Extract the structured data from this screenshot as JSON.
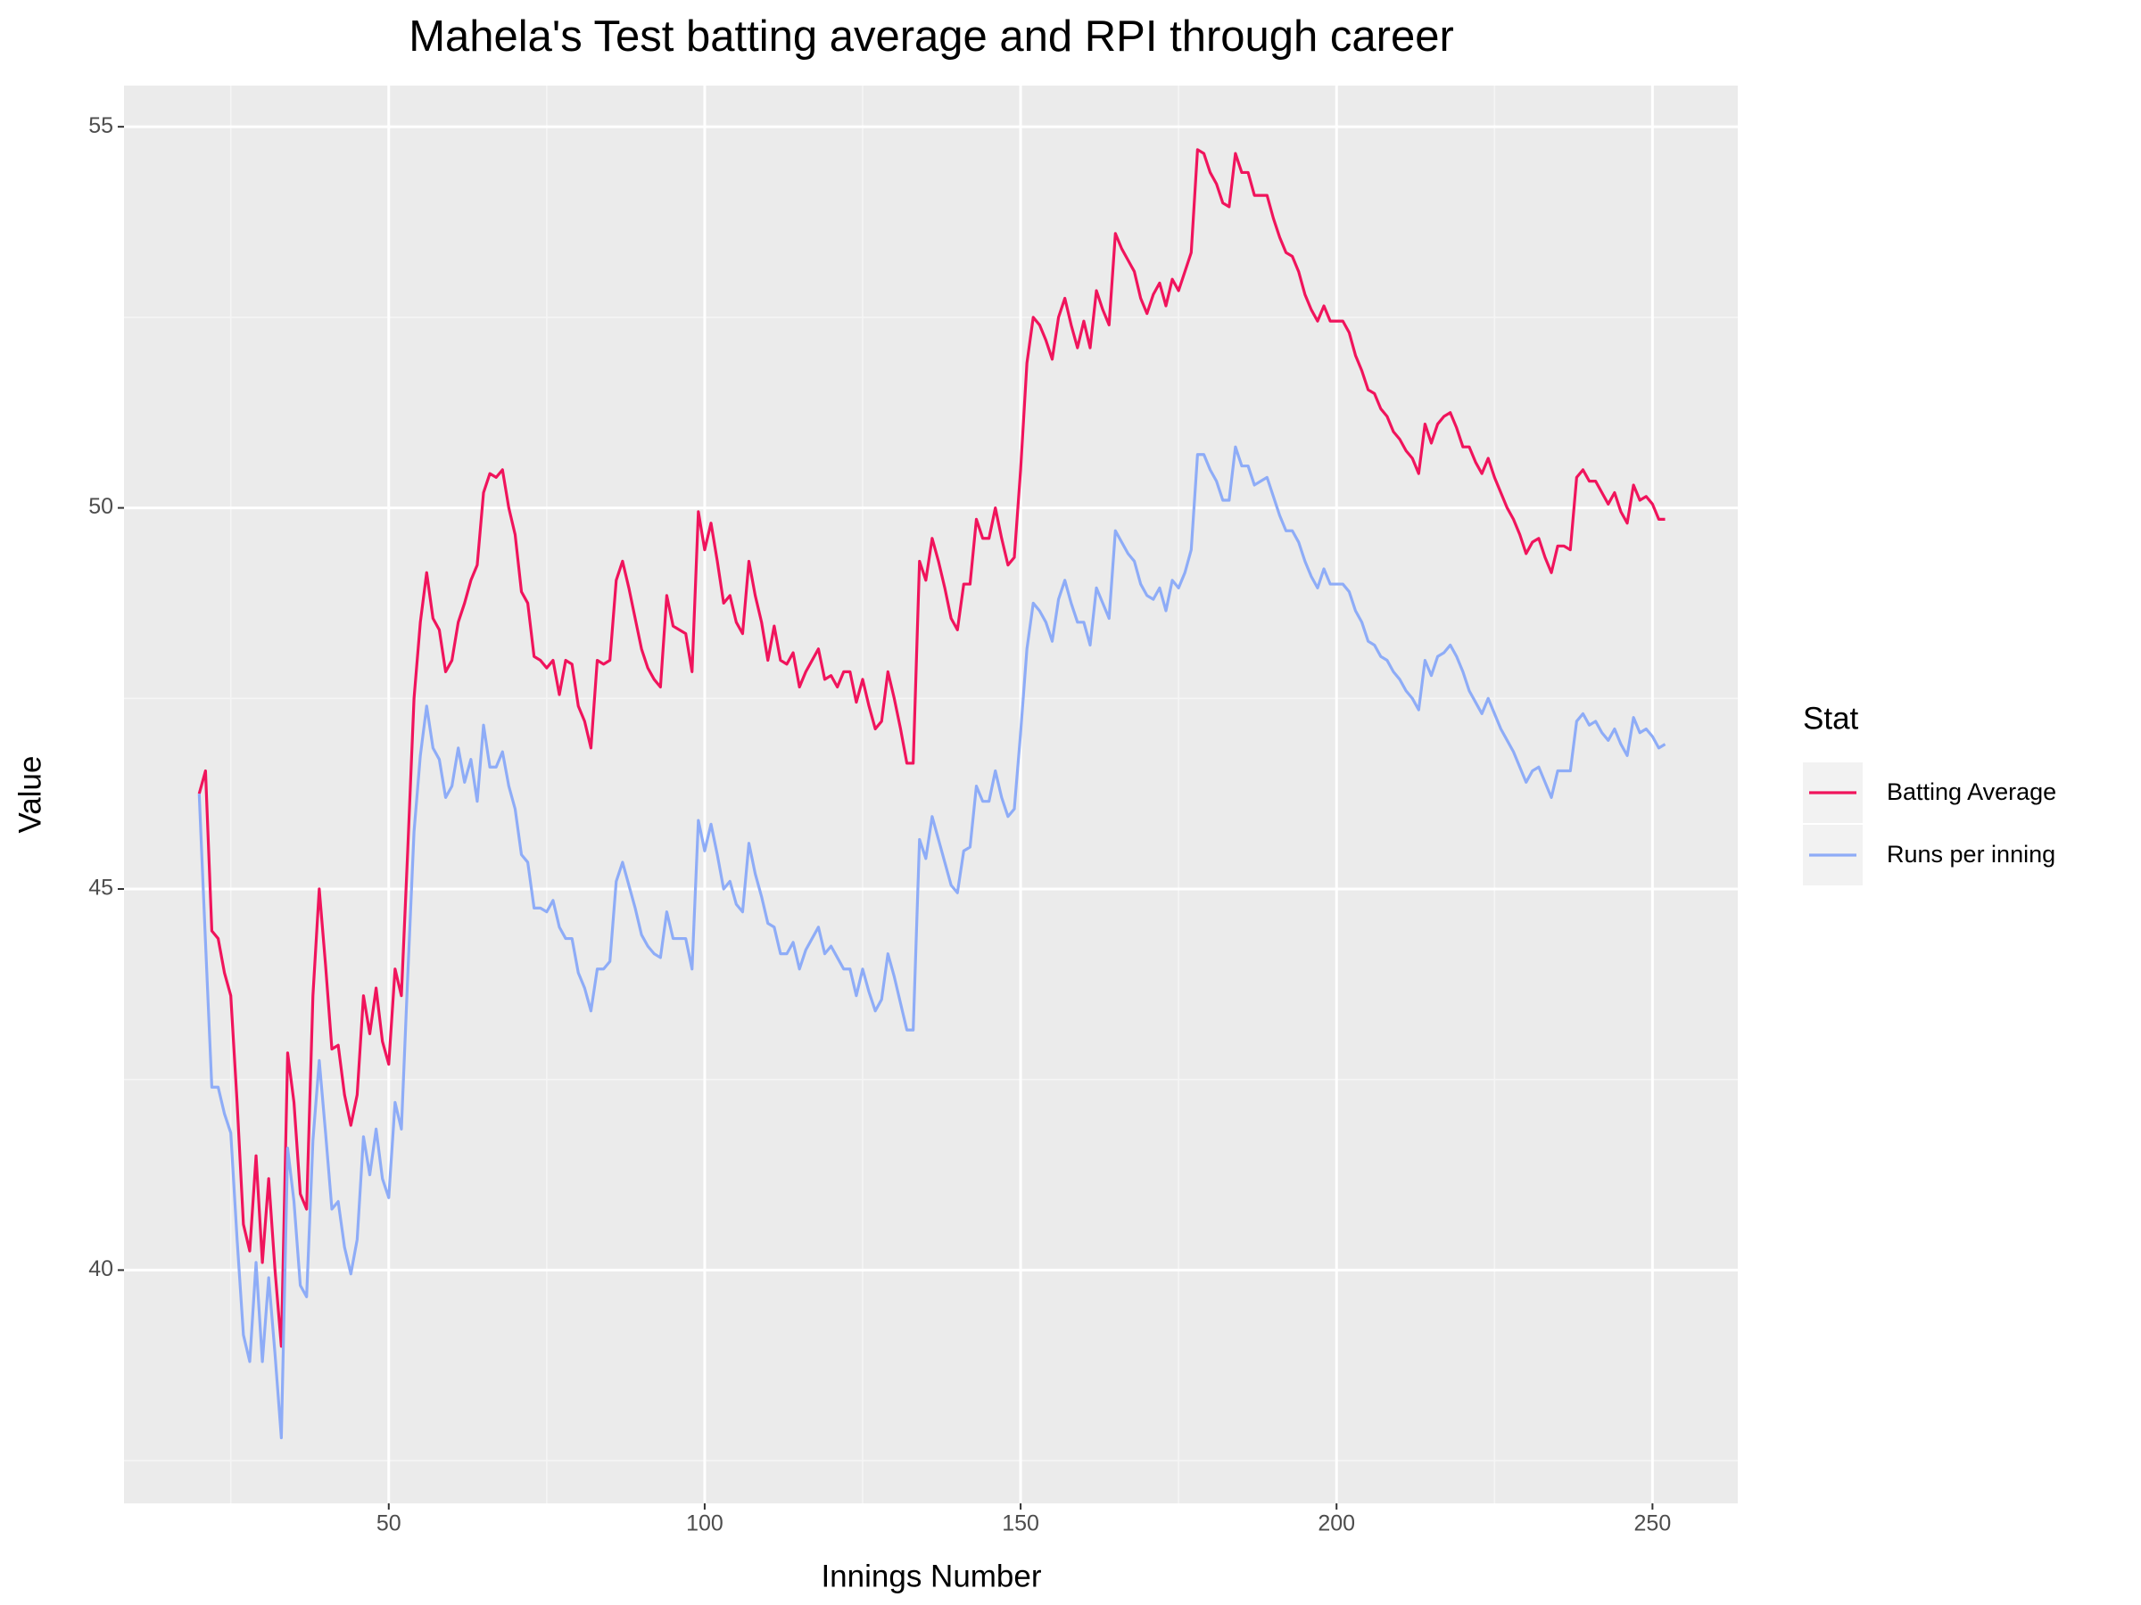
{
  "chart_data": {
    "type": "line",
    "title": "Mahela's Test batting average and RPI through career",
    "x_label": "Innings Number",
    "y_label": "Value",
    "legend_title": "Stat",
    "xlim": [
      8.1,
      263.5
    ],
    "ylim": [
      36.94,
      55.54
    ],
    "xticks": [
      50,
      100,
      150,
      200,
      250
    ],
    "yticks": [
      40,
      45,
      50,
      55
    ],
    "minor_xticks": [
      25,
      75,
      125,
      175,
      225
    ],
    "minor_yticks": [
      37.5,
      42.5,
      47.5,
      52.5
    ],
    "grid": true,
    "legend_position": "right",
    "x": [
      20,
      21,
      22,
      23,
      24,
      25,
      26,
      27,
      28,
      29,
      30,
      31,
      32,
      33,
      34,
      35,
      36,
      37,
      38,
      39,
      40,
      41,
      42,
      43,
      44,
      45,
      46,
      47,
      48,
      49,
      50,
      51,
      52,
      53,
      54,
      55,
      56,
      57,
      58,
      59,
      60,
      61,
      62,
      63,
      64,
      65,
      66,
      67,
      68,
      69,
      70,
      71,
      72,
      73,
      74,
      75,
      76,
      77,
      78,
      79,
      80,
      81,
      82,
      83,
      84,
      85,
      86,
      87,
      88,
      89,
      90,
      91,
      92,
      93,
      94,
      95,
      96,
      97,
      98,
      99,
      100,
      101,
      102,
      103,
      104,
      105,
      106,
      107,
      108,
      109,
      110,
      111,
      112,
      113,
      114,
      115,
      116,
      117,
      118,
      119,
      120,
      121,
      122,
      123,
      124,
      125,
      126,
      127,
      128,
      129,
      130,
      131,
      132,
      133,
      134,
      135,
      136,
      137,
      138,
      139,
      140,
      141,
      142,
      143,
      144,
      145,
      146,
      147,
      148,
      149,
      150,
      151,
      152,
      153,
      154,
      155,
      156,
      157,
      158,
      159,
      160,
      161,
      162,
      163,
      164,
      165,
      166,
      167,
      168,
      169,
      170,
      171,
      172,
      173,
      174,
      175,
      176,
      177,
      178,
      179,
      180,
      181,
      182,
      183,
      184,
      185,
      186,
      187,
      188,
      189,
      190,
      191,
      192,
      193,
      194,
      195,
      196,
      197,
      198,
      199,
      200,
      201,
      202,
      203,
      204,
      205,
      206,
      207,
      208,
      209,
      210,
      211,
      212,
      213,
      214,
      215,
      216,
      217,
      218,
      219,
      220,
      221,
      222,
      223,
      224,
      225,
      226,
      227,
      228,
      229,
      230,
      231,
      232,
      233,
      234,
      235,
      236,
      237,
      238,
      239,
      240,
      241,
      242,
      243,
      244,
      245,
      246,
      247,
      248,
      249,
      250,
      251,
      252
    ],
    "series": [
      {
        "name": "Batting Average",
        "color": "#f0145c",
        "values": [
          46.25,
          46.55,
          44.45,
          44.35,
          43.9,
          43.6,
          42.2,
          40.6,
          40.25,
          41.5,
          40.1,
          41.2,
          40.0,
          39.0,
          42.85,
          42.2,
          41.0,
          40.8,
          43.6,
          45.0,
          44.0,
          42.9,
          42.95,
          42.3,
          41.9,
          42.3,
          43.6,
          43.1,
          43.7,
          43.0,
          42.7,
          43.95,
          43.6,
          45.5,
          47.5,
          48.5,
          49.15,
          48.55,
          48.4,
          47.85,
          48.0,
          48.5,
          48.75,
          49.05,
          49.25,
          50.2,
          50.45,
          50.4,
          50.5,
          50.0,
          49.65,
          48.9,
          48.75,
          48.05,
          48.0,
          47.9,
          48.0,
          47.55,
          48.0,
          47.95,
          47.4,
          47.2,
          46.85,
          48.0,
          47.95,
          48.0,
          49.05,
          49.3,
          48.95,
          48.55,
          48.15,
          47.9,
          47.75,
          47.65,
          48.85,
          48.45,
          48.4,
          48.35,
          47.85,
          49.95,
          49.45,
          49.8,
          49.3,
          48.75,
          48.85,
          48.5,
          48.35,
          49.3,
          48.85,
          48.5,
          48.0,
          48.45,
          48.0,
          47.95,
          48.1,
          47.65,
          47.85,
          48.0,
          48.15,
          47.75,
          47.8,
          47.65,
          47.85,
          47.85,
          47.45,
          47.75,
          47.4,
          47.1,
          47.2,
          47.85,
          47.5,
          47.1,
          46.65,
          46.65,
          49.3,
          49.05,
          49.6,
          49.3,
          48.95,
          48.55,
          48.4,
          49.0,
          49.0,
          49.85,
          49.6,
          49.6,
          50.0,
          49.6,
          49.25,
          49.35,
          50.5,
          51.9,
          52.5,
          52.4,
          52.2,
          51.95,
          52.5,
          52.75,
          52.4,
          52.1,
          52.45,
          52.1,
          52.85,
          52.6,
          52.4,
          53.6,
          53.4,
          53.25,
          53.1,
          52.75,
          52.55,
          52.8,
          52.95,
          52.65,
          53.0,
          52.85,
          53.1,
          53.35,
          54.7,
          54.65,
          54.4,
          54.25,
          54.0,
          53.95,
          54.65,
          54.4,
          54.4,
          54.1,
          54.1,
          54.1,
          53.8,
          53.55,
          53.35,
          53.3,
          53.1,
          52.8,
          52.6,
          52.45,
          52.65,
          52.45,
          52.45,
          52.45,
          52.3,
          52.0,
          51.8,
          51.55,
          51.5,
          51.3,
          51.2,
          51.0,
          50.9,
          50.75,
          50.65,
          50.45,
          51.1,
          50.85,
          51.1,
          51.2,
          51.25,
          51.05,
          50.8,
          50.8,
          50.6,
          50.45,
          50.65,
          50.4,
          50.2,
          50.0,
          49.85,
          49.65,
          49.4,
          49.55,
          49.6,
          49.35,
          49.15,
          49.5,
          49.5,
          49.45,
          50.4,
          50.5,
          50.35,
          50.35,
          50.2,
          50.05,
          50.2,
          49.95,
          49.8,
          50.3,
          50.1,
          50.15,
          50.05,
          49.85,
          49.85
        ]
      },
      {
        "name": "Runs per inning",
        "color": "#8eacf7",
        "values": [
          46.25,
          44.3,
          42.4,
          42.4,
          42.05,
          41.8,
          40.4,
          39.15,
          38.8,
          40.1,
          38.8,
          39.9,
          38.9,
          37.8,
          41.6,
          40.9,
          39.8,
          39.65,
          41.7,
          42.75,
          41.8,
          40.8,
          40.9,
          40.3,
          39.95,
          40.4,
          41.75,
          41.25,
          41.85,
          41.2,
          40.95,
          42.2,
          41.85,
          43.85,
          45.75,
          46.75,
          47.4,
          46.85,
          46.7,
          46.2,
          46.35,
          46.85,
          46.4,
          46.7,
          46.15,
          47.15,
          46.6,
          46.6,
          46.8,
          46.35,
          46.05,
          45.45,
          45.35,
          44.75,
          44.75,
          44.7,
          44.85,
          44.5,
          44.35,
          44.35,
          43.9,
          43.7,
          43.4,
          43.95,
          43.95,
          44.05,
          45.1,
          45.35,
          45.05,
          44.75,
          44.4,
          44.25,
          44.15,
          44.1,
          44.7,
          44.35,
          44.35,
          44.35,
          43.95,
          45.9,
          45.5,
          45.85,
          45.45,
          45.0,
          45.1,
          44.8,
          44.7,
          45.6,
          45.2,
          44.9,
          44.55,
          44.5,
          44.15,
          44.15,
          44.3,
          43.95,
          44.2,
          44.35,
          44.5,
          44.15,
          44.25,
          44.1,
          43.95,
          43.95,
          43.6,
          43.95,
          43.65,
          43.4,
          43.55,
          44.15,
          43.85,
          43.5,
          43.15,
          43.15,
          45.65,
          45.4,
          45.95,
          45.65,
          45.35,
          45.05,
          44.95,
          45.5,
          45.55,
          46.35,
          46.15,
          46.15,
          46.55,
          46.2,
          45.95,
          46.05,
          47.05,
          48.15,
          48.75,
          48.65,
          48.5,
          48.25,
          48.8,
          49.05,
          48.75,
          48.5,
          48.5,
          48.2,
          48.95,
          48.75,
          48.55,
          49.7,
          49.55,
          49.4,
          49.3,
          49.0,
          48.85,
          48.8,
          48.95,
          48.65,
          49.05,
          48.95,
          49.15,
          49.45,
          50.7,
          50.7,
          50.5,
          50.35,
          50.1,
          50.1,
          50.8,
          50.55,
          50.55,
          50.3,
          50.35,
          50.4,
          50.15,
          49.9,
          49.7,
          49.7,
          49.55,
          49.3,
          49.1,
          48.95,
          49.2,
          49.0,
          49.0,
          49.0,
          48.9,
          48.65,
          48.5,
          48.25,
          48.2,
          48.05,
          48.0,
          47.85,
          47.75,
          47.6,
          47.5,
          47.35,
          48.0,
          47.8,
          48.05,
          48.1,
          48.2,
          48.05,
          47.85,
          47.6,
          47.45,
          47.3,
          47.5,
          47.3,
          47.1,
          46.95,
          46.8,
          46.6,
          46.4,
          46.55,
          46.6,
          46.4,
          46.2,
          46.55,
          46.55,
          46.55,
          47.2,
          47.3,
          47.15,
          47.2,
          47.05,
          46.95,
          47.1,
          46.9,
          46.75,
          47.25,
          47.05,
          47.1,
          47.0,
          46.85,
          46.9
        ]
      }
    ]
  }
}
